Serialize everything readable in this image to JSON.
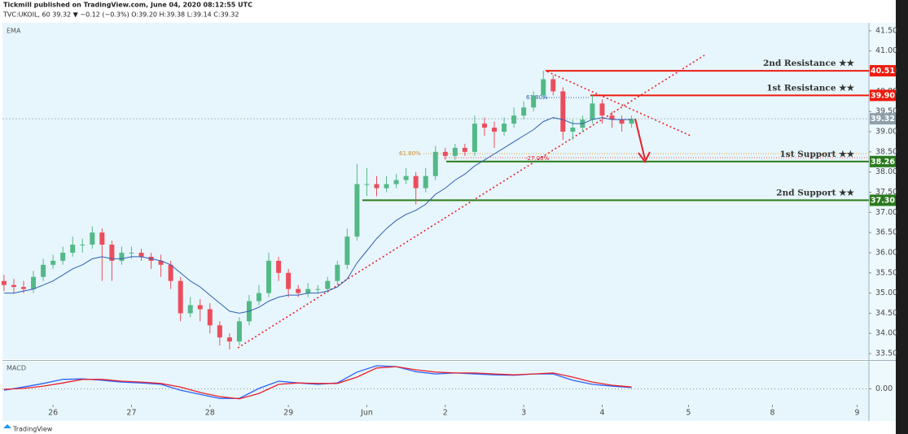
{
  "chart_data": {
    "type": "candlestick",
    "title": "Tickmill published on TradingView.com, June 04, 2020 08:12:55 UTC",
    "subtitle": "TVC:UKOIL, 60  39.32 ▼ −0.12 (−0.3%) O:39.20 H:39.38 L:39.14 C:39.32",
    "up_color": "#53b987",
    "down_color": "#eb4d5c",
    "x": [
      -0.625,
      -0.5,
      -0.375,
      -0.25,
      -0.125,
      0,
      0.125,
      0.25,
      0.375,
      0.5,
      0.625,
      0.75,
      0.875,
      1,
      1.125,
      1.25,
      1.375,
      1.5,
      1.625,
      1.75,
      1.875,
      2,
      2.125,
      2.25,
      2.375,
      2.5,
      2.625,
      2.75,
      2.875,
      3,
      3.125,
      3.25,
      3.375,
      3.5,
      3.625,
      3.75,
      3.875,
      4,
      4.125,
      4.25,
      4.375,
      4.5,
      4.625,
      4.75,
      4.875,
      5,
      5.125,
      5.25,
      5.375,
      5.5,
      5.625,
      5.75,
      5.875,
      6,
      6.125,
      6.25,
      6.375,
      6.5,
      6.625,
      6.75,
      6.875,
      7,
      7.125,
      7.25,
      7.375
    ],
    "open": [
      35.3,
      35.2,
      35.15,
      35.1,
      35.4,
      35.7,
      35.8,
      36.0,
      36.2,
      36.2,
      36.5,
      36.2,
      35.8,
      36.0,
      36.0,
      35.9,
      35.8,
      35.7,
      35.3,
      34.5,
      34.7,
      34.6,
      34.2,
      33.9,
      33.8,
      34.3,
      34.8,
      35.0,
      35.8,
      35.5,
      35.1,
      35.0,
      35.1,
      35.1,
      35.3,
      35.7,
      36.4,
      37.7,
      37.7,
      37.6,
      37.7,
      37.8,
      37.9,
      37.6,
      37.9,
      38.5,
      38.4,
      38.6,
      38.5,
      39.2,
      39.1,
      39.0,
      39.2,
      39.4,
      39.6,
      39.9,
      40.3,
      40.0,
      39.0,
      39.1,
      39.3,
      39.7,
      39.4,
      39.3,
      39.2
    ],
    "high": [
      35.45,
      35.35,
      35.3,
      35.55,
      35.85,
      35.95,
      36.15,
      36.4,
      36.35,
      36.65,
      36.6,
      36.3,
      36.15,
      36.15,
      36.1,
      36.0,
      35.95,
      35.8,
      35.4,
      34.9,
      34.85,
      34.75,
      34.3,
      34.0,
      34.4,
      34.95,
      35.2,
      36.0,
      35.9,
      35.6,
      35.2,
      35.25,
      35.2,
      35.4,
      35.8,
      36.6,
      38.2,
      38.1,
      37.9,
      37.9,
      37.95,
      38.1,
      38.0,
      38.1,
      38.65,
      38.6,
      38.7,
      38.7,
      39.4,
      39.35,
      39.25,
      39.35,
      39.6,
      39.75,
      40.0,
      40.51,
      40.4,
      40.1,
      39.3,
      39.4,
      39.9,
      39.8,
      39.5,
      39.4,
      39.4
    ],
    "low": [
      35.05,
      35.0,
      35.0,
      35.0,
      35.3,
      35.6,
      35.7,
      35.9,
      36.0,
      36.1,
      35.3,
      35.3,
      35.7,
      35.85,
      35.8,
      35.6,
      35.4,
      35.1,
      34.3,
      34.4,
      34.3,
      34.0,
      33.7,
      33.6,
      33.7,
      34.2,
      34.7,
      34.9,
      35.3,
      34.9,
      34.9,
      34.9,
      35.0,
      35.0,
      35.2,
      35.6,
      36.3,
      37.4,
      37.4,
      37.5,
      37.6,
      37.7,
      37.2,
      37.5,
      37.8,
      38.3,
      38.3,
      38.4,
      38.4,
      38.9,
      38.6,
      38.9,
      39.1,
      39.3,
      39.5,
      39.8,
      39.9,
      38.8,
      38.8,
      39.0,
      39.2,
      39.2,
      39.1,
      39.0,
      39.1
    ],
    "close": [
      35.2,
      35.15,
      35.1,
      35.4,
      35.7,
      35.8,
      36.0,
      36.2,
      36.2,
      36.5,
      36.2,
      35.8,
      36.0,
      36.0,
      35.9,
      35.8,
      35.7,
      35.3,
      34.5,
      34.7,
      34.6,
      34.2,
      33.9,
      33.8,
      34.3,
      34.8,
      35.0,
      35.8,
      35.5,
      35.1,
      35.0,
      35.1,
      35.1,
      35.3,
      35.7,
      36.4,
      37.7,
      37.7,
      37.6,
      37.7,
      37.8,
      37.9,
      37.6,
      37.9,
      38.5,
      38.4,
      38.6,
      38.5,
      39.2,
      39.1,
      39.0,
      39.2,
      39.4,
      39.6,
      39.9,
      40.3,
      40.0,
      39.0,
      39.1,
      39.3,
      39.7,
      39.4,
      39.3,
      39.2,
      39.32
    ],
    "ema": {
      "name": "EMA",
      "color": "#2f5fb3",
      "values": [
        35.0,
        35.0,
        35.05,
        35.1,
        35.2,
        35.3,
        35.45,
        35.6,
        35.7,
        35.85,
        35.9,
        35.85,
        35.85,
        35.9,
        35.9,
        35.85,
        35.8,
        35.7,
        35.5,
        35.3,
        35.15,
        34.95,
        34.75,
        34.55,
        34.5,
        34.55,
        34.65,
        34.8,
        34.9,
        34.95,
        34.95,
        35.0,
        35.0,
        35.05,
        35.15,
        35.35,
        35.75,
        36.05,
        36.35,
        36.6,
        36.8,
        36.95,
        37.05,
        37.2,
        37.45,
        37.6,
        37.8,
        37.95,
        38.15,
        38.3,
        38.45,
        38.6,
        38.75,
        38.9,
        39.05,
        39.25,
        39.35,
        39.3,
        39.2,
        39.2,
        39.3,
        39.35,
        39.3,
        39.3,
        39.3
      ]
    },
    "xlim": [
      -0.645,
      10.4
    ],
    "xticks": [
      {
        "value": 0,
        "label": "26"
      },
      {
        "value": 1,
        "label": "27"
      },
      {
        "value": 2,
        "label": "28"
      },
      {
        "value": 3,
        "label": "29"
      },
      {
        "value": 4,
        "label": "Jun"
      },
      {
        "value": 5,
        "label": "2"
      },
      {
        "value": 6,
        "label": "3"
      },
      {
        "value": 7,
        "label": "4"
      },
      {
        "value": 8.1,
        "label": "5"
      },
      {
        "value": 9.17,
        "label": "8"
      },
      {
        "value": 10.25,
        "label": "9"
      }
    ],
    "ylim": [
      33.36,
      41.7
    ],
    "yticks": [
      {
        "value": 33.5,
        "label": "33.50"
      },
      {
        "value": 34,
        "label": "34.00"
      },
      {
        "value": 34.5,
        "label": "34.50"
      },
      {
        "value": 35,
        "label": "35.00"
      },
      {
        "value": 35.5,
        "label": "35.50"
      },
      {
        "value": 36,
        "label": "36.00"
      },
      {
        "value": 36.5,
        "label": "36.50"
      },
      {
        "value": 37,
        "label": "37.00"
      },
      {
        "value": 37.5,
        "label": "37.50"
      },
      {
        "value": 38,
        "label": "38.00"
      },
      {
        "value": 38.5,
        "label": "38.50"
      },
      {
        "value": 39,
        "label": "39.00"
      },
      {
        "value": 39.5,
        "label": "39.50"
      },
      {
        "value": 40,
        "label": "40.00"
      },
      {
        "value": 40.5,
        "label": "40.50"
      },
      {
        "value": 41,
        "label": "41.00"
      },
      {
        "value": 41.5,
        "label": "41.50"
      }
    ],
    "levels": [
      {
        "name": "2nd Resistance ★★",
        "value": 40.51,
        "value_label": "40.51",
        "color": "#ee1c10"
      },
      {
        "name": "1st Resistance ★★",
        "value": 39.9,
        "value_label": "39.90",
        "color": "#ee1c10"
      },
      {
        "name": "1st Support ★★",
        "value": 38.26,
        "value_label": "38.26",
        "color": "#2b7a1e"
      },
      {
        "name": "2nd Support ★★",
        "value": 37.3,
        "value_label": "37.30",
        "color": "#2b7a1e"
      }
    ],
    "last_price": {
      "value": 39.32,
      "label": "39.32",
      "color": "#8fa0aa"
    },
    "annotations": [
      "61.80%",
      "61.80%",
      "-27.00%"
    ],
    "macd": {
      "title": "MACD",
      "x": [
        -0.625,
        -0.375,
        -0.125,
        0.125,
        0.375,
        0.625,
        0.875,
        1.125,
        1.375,
        1.625,
        1.875,
        2.125,
        2.375,
        2.625,
        2.875,
        3.125,
        3.375,
        3.625,
        3.875,
        4.125,
        4.375,
        4.625,
        4.875,
        5.125,
        5.375,
        5.625,
        5.875,
        6.125,
        6.375,
        6.625,
        6.875,
        7.125,
        7.375
      ],
      "ylim": [
        -0.35,
        0.6
      ],
      "yticks": [
        {
          "value": 0,
          "label": "0.00"
        }
      ],
      "series": [
        {
          "color": "#2962ff",
          "values": [
            -0.03,
            0.04,
            0.12,
            0.21,
            0.22,
            0.19,
            0.15,
            0.13,
            0.1,
            -0.03,
            -0.12,
            -0.21,
            -0.21,
            0.01,
            0.17,
            0.13,
            0.1,
            0.13,
            0.37,
            0.51,
            0.49,
            0.38,
            0.33,
            0.35,
            0.33,
            0.31,
            0.3,
            0.33,
            0.33,
            0.19,
            0.1,
            0.06,
            0.03
          ]
        },
        {
          "color": "#e8202a",
          "values": [
            -0.01,
            0.01,
            0.06,
            0.13,
            0.21,
            0.21,
            0.17,
            0.15,
            0.12,
            0.04,
            -0.08,
            -0.17,
            -0.22,
            -0.1,
            0.1,
            0.13,
            0.12,
            0.12,
            0.26,
            0.46,
            0.49,
            0.42,
            0.37,
            0.35,
            0.35,
            0.33,
            0.31,
            0.33,
            0.35,
            0.26,
            0.15,
            0.08,
            0.04
          ]
        }
      ]
    },
    "footer": "TradingView"
  }
}
